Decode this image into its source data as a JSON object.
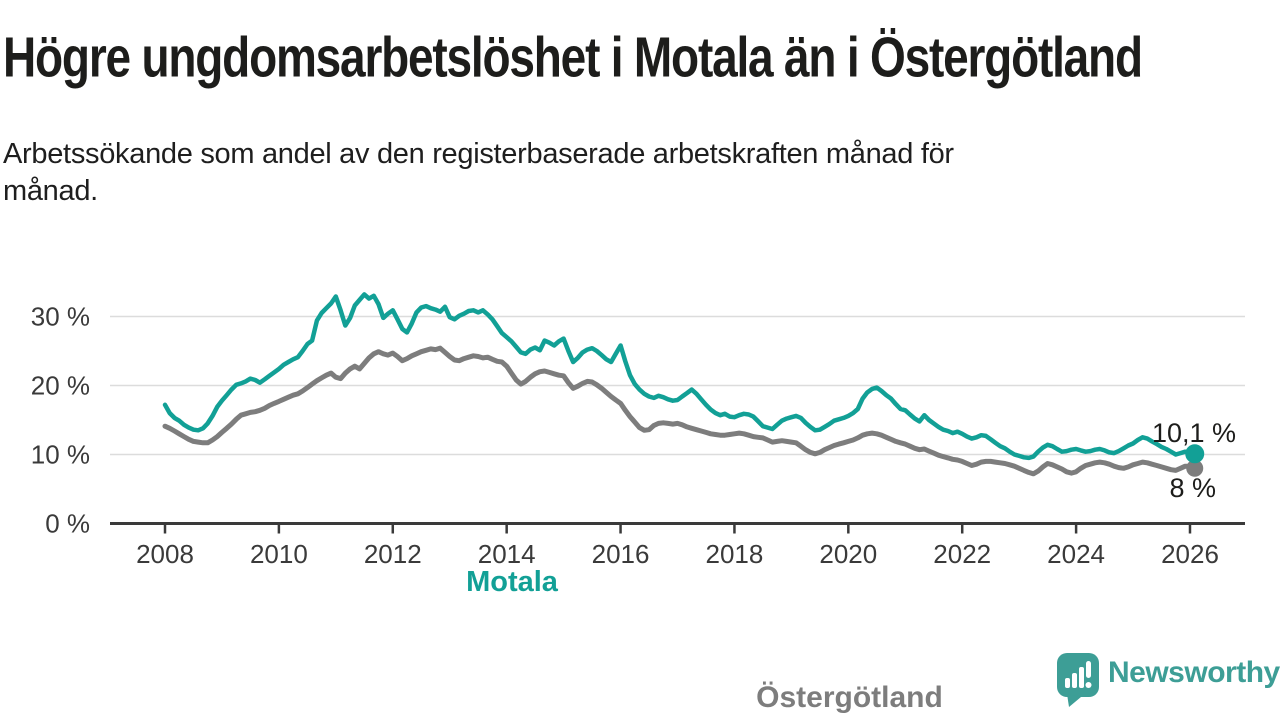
{
  "header": {
    "title": "Högre ungdomsarbetslöshet i Motala än i Östergötland",
    "subtitle_line1": "Arbetssökande som andel av den registerbaserade arbetskraften månad för",
    "subtitle_line2": "månad."
  },
  "colors": {
    "motala_line": "#12a096",
    "ostergotland_line": "#7d7d7d",
    "axis": "#3a3a3a",
    "grid": "#dcdcdc",
    "text": "#1d1d1b",
    "brand_teal": "#3d9e96"
  },
  "footer": {
    "brand": "Newsworthy"
  },
  "chart_data": {
    "type": "line",
    "title": "Högre ungdomsarbetslöshet i Motala än i Östergötland",
    "xlabel": "",
    "ylabel": "",
    "x_monthly_from": "2008-01",
    "x_monthly_to": "2026-02",
    "points_per_year": 12,
    "ylim": [
      0,
      34
    ],
    "grid": "horizontal",
    "legend_position": "inline-labels",
    "yticks": [
      0,
      10,
      20,
      30
    ],
    "ytick_labels": [
      "0 %",
      "10 %",
      "20 %",
      "30 %"
    ],
    "xtick_years": [
      2008,
      2010,
      2012,
      2014,
      2016,
      2018,
      2020,
      2022,
      2024,
      2026
    ],
    "xtick_labels": [
      "2008",
      "2010",
      "2012",
      "2014",
      "2016",
      "2018",
      "2020",
      "2022",
      "2024",
      "2026"
    ],
    "series": [
      {
        "name": "Motala",
        "color": "#12a096",
        "end_label": "10,1 %",
        "end_value": 10.1,
        "values": [
          17.2,
          16.0,
          15.3,
          14.9,
          14.3,
          13.9,
          13.6,
          13.5,
          13.8,
          14.5,
          15.6,
          16.9,
          17.8,
          18.6,
          19.4,
          20.1,
          20.3,
          20.6,
          21.0,
          20.8,
          20.4,
          20.9,
          21.4,
          21.9,
          22.4,
          23.0,
          23.4,
          23.8,
          24.1,
          25.0,
          26.0,
          26.5,
          29.4,
          30.5,
          31.2,
          31.9,
          32.9,
          30.9,
          28.7,
          29.8,
          31.6,
          32.4,
          33.2,
          32.6,
          33.0,
          31.8,
          29.8,
          30.4,
          30.9,
          29.6,
          28.2,
          27.7,
          29.0,
          30.6,
          31.3,
          31.5,
          31.2,
          31.0,
          30.7,
          31.4,
          29.9,
          29.6,
          30.1,
          30.4,
          30.8,
          30.9,
          30.6,
          30.9,
          30.3,
          29.6,
          28.6,
          27.6,
          27.0,
          26.4,
          25.6,
          24.8,
          24.6,
          25.2,
          25.5,
          25.1,
          26.5,
          26.2,
          25.8,
          26.4,
          26.8,
          25.0,
          23.4,
          24.0,
          24.8,
          25.2,
          25.4,
          25.0,
          24.4,
          23.8,
          23.4,
          24.6,
          25.8,
          23.5,
          21.5,
          20.2,
          19.4,
          18.8,
          18.4,
          18.2,
          18.5,
          18.3,
          18.0,
          17.8,
          17.9,
          18.4,
          18.9,
          19.4,
          18.8,
          18.0,
          17.2,
          16.5,
          16.0,
          15.7,
          15.9,
          15.5,
          15.4,
          15.7,
          15.9,
          15.8,
          15.5,
          14.8,
          14.1,
          13.9,
          13.7,
          14.3,
          14.9,
          15.2,
          15.4,
          15.6,
          15.3,
          14.6,
          14.0,
          13.5,
          13.6,
          14.0,
          14.4,
          14.9,
          15.1,
          15.3,
          15.6,
          16.0,
          16.6,
          18.1,
          19.0,
          19.5,
          19.7,
          19.2,
          18.6,
          18.1,
          17.3,
          16.6,
          16.4,
          15.8,
          15.2,
          14.8,
          15.7,
          15.0,
          14.5,
          14.0,
          13.6,
          13.4,
          13.1,
          13.3,
          13.0,
          12.6,
          12.3,
          12.5,
          12.8,
          12.7,
          12.2,
          11.7,
          11.2,
          10.9,
          10.4,
          10.0,
          9.8,
          9.6,
          9.5,
          9.7,
          10.4,
          11.0,
          11.4,
          11.2,
          10.8,
          10.4,
          10.5,
          10.7,
          10.8,
          10.6,
          10.4,
          10.5,
          10.7,
          10.8,
          10.6,
          10.3,
          10.2,
          10.5,
          10.9,
          11.3,
          11.6,
          12.1,
          12.5,
          12.3,
          11.9,
          11.5,
          11.1,
          10.8,
          10.4,
          10.0,
          10.2,
          10.4,
          10.3,
          10.1
        ]
      },
      {
        "name": "Östergötland",
        "color": "#7d7d7d",
        "end_label": "8 %",
        "end_value": 8.0,
        "values": [
          14.1,
          13.8,
          13.4,
          13.0,
          12.6,
          12.2,
          11.9,
          11.8,
          11.7,
          11.7,
          12.1,
          12.6,
          13.2,
          13.8,
          14.4,
          15.1,
          15.7,
          15.9,
          16.1,
          16.2,
          16.4,
          16.7,
          17.1,
          17.4,
          17.7,
          18.0,
          18.3,
          18.6,
          18.8,
          19.2,
          19.7,
          20.2,
          20.7,
          21.1,
          21.5,
          21.8,
          21.2,
          21.0,
          21.8,
          22.4,
          22.8,
          22.4,
          23.2,
          24.0,
          24.6,
          24.9,
          24.6,
          24.4,
          24.7,
          24.2,
          23.6,
          23.9,
          24.3,
          24.6,
          24.9,
          25.1,
          25.3,
          25.2,
          25.4,
          24.8,
          24.2,
          23.7,
          23.6,
          23.9,
          24.1,
          24.3,
          24.2,
          24.0,
          24.1,
          23.8,
          23.5,
          23.4,
          22.8,
          21.8,
          20.8,
          20.2,
          20.6,
          21.2,
          21.7,
          22.0,
          22.1,
          21.9,
          21.7,
          21.5,
          21.4,
          20.4,
          19.6,
          19.9,
          20.3,
          20.6,
          20.5,
          20.1,
          19.6,
          19.0,
          18.4,
          17.9,
          17.4,
          16.4,
          15.5,
          14.7,
          13.9,
          13.5,
          13.6,
          14.2,
          14.5,
          14.6,
          14.5,
          14.4,
          14.5,
          14.3,
          14.0,
          13.8,
          13.6,
          13.4,
          13.2,
          13.0,
          12.9,
          12.8,
          12.8,
          12.9,
          13.0,
          13.1,
          13.0,
          12.8,
          12.6,
          12.5,
          12.4,
          12.1,
          11.8,
          11.9,
          12.0,
          11.9,
          11.8,
          11.7,
          11.2,
          10.7,
          10.3,
          10.1,
          10.3,
          10.7,
          11.0,
          11.3,
          11.5,
          11.7,
          11.9,
          12.1,
          12.4,
          12.8,
          13.0,
          13.1,
          13.0,
          12.8,
          12.5,
          12.2,
          11.9,
          11.7,
          11.5,
          11.2,
          10.9,
          10.7,
          10.8,
          10.5,
          10.2,
          9.9,
          9.7,
          9.5,
          9.3,
          9.2,
          9.0,
          8.7,
          8.4,
          8.6,
          8.9,
          9.0,
          9.0,
          8.9,
          8.8,
          8.7,
          8.5,
          8.3,
          8.0,
          7.7,
          7.4,
          7.2,
          7.6,
          8.2,
          8.7,
          8.5,
          8.2,
          7.9,
          7.5,
          7.3,
          7.5,
          8.0,
          8.4,
          8.6,
          8.8,
          8.9,
          8.8,
          8.6,
          8.3,
          8.1,
          8.0,
          8.2,
          8.5,
          8.7,
          8.9,
          8.8,
          8.6,
          8.4,
          8.2,
          8.0,
          7.8,
          7.7,
          8.0,
          8.3,
          8.3,
          8.0
        ]
      }
    ]
  }
}
